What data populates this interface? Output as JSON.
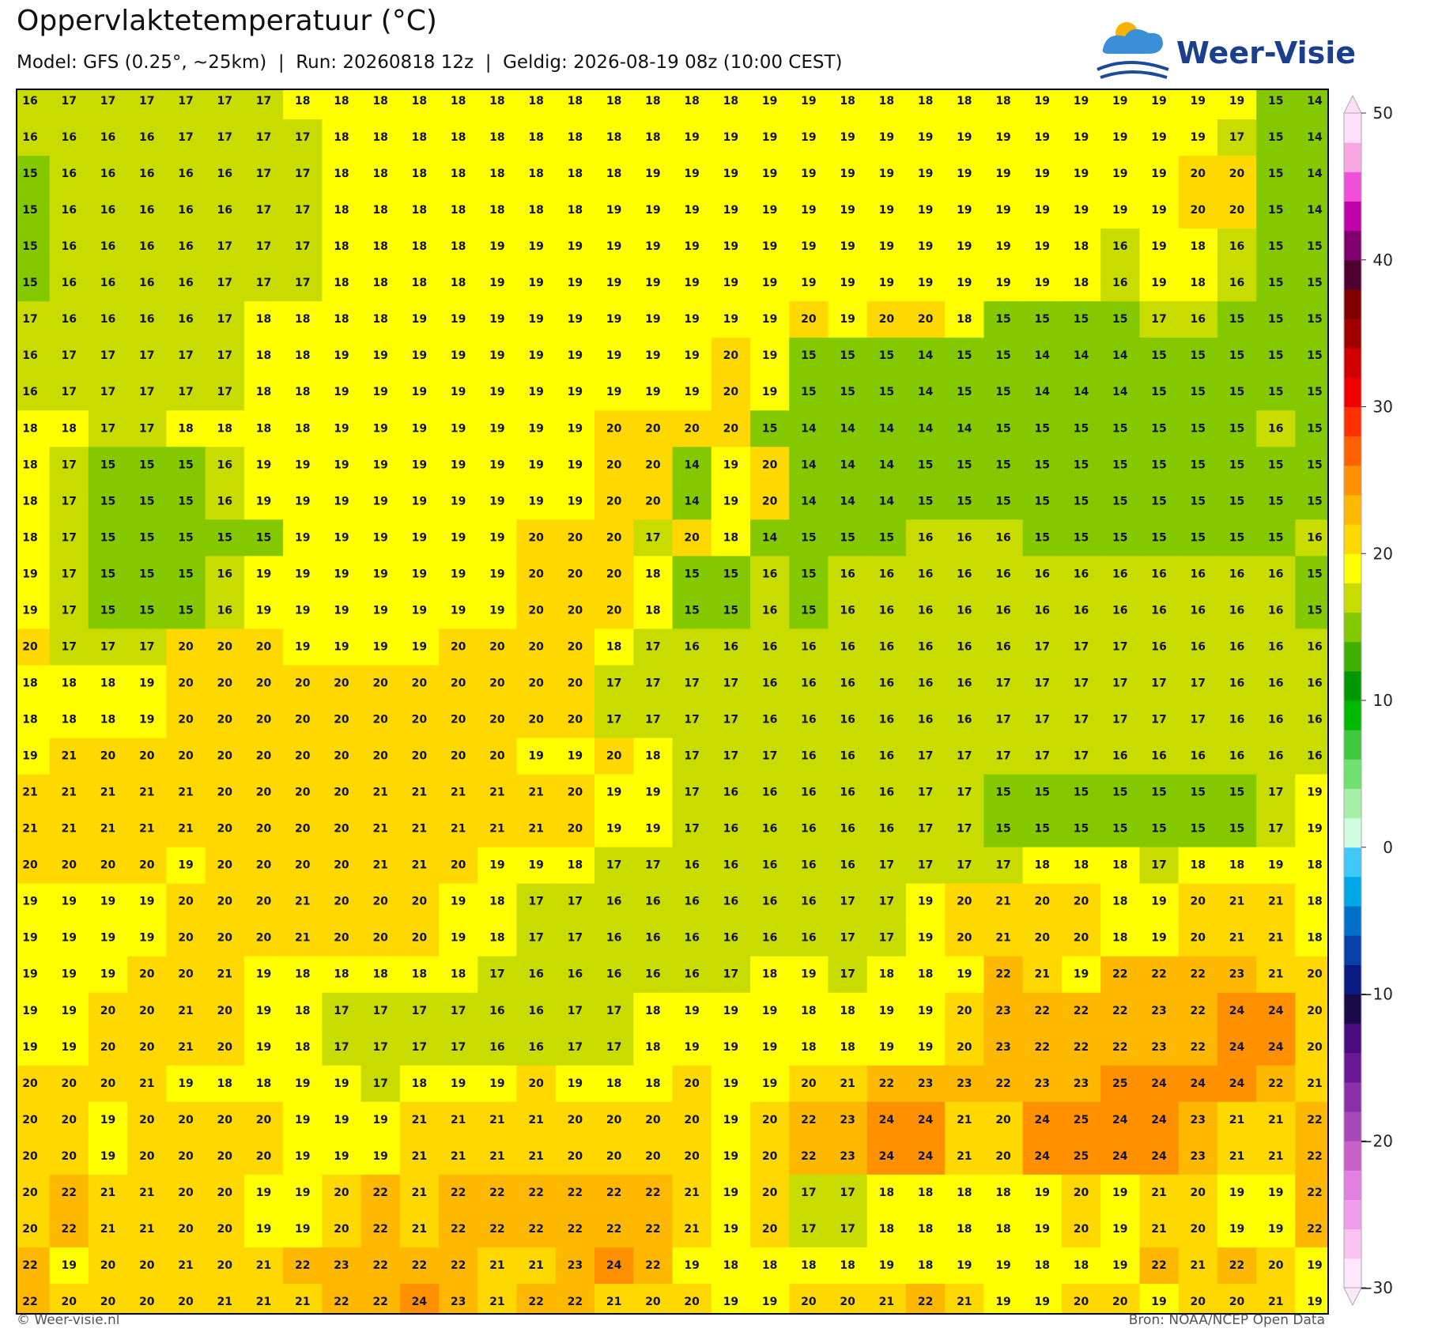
{
  "header": {
    "title": "Oppervlaktetemperatuur (°C)",
    "subtitle": "Model: GFS (0.25°, ~25km)  |  Run: 20260818 12z  |  Geldig: 2026-08-19 08z (10:00 CEST)",
    "logo": "Weer-Visie"
  },
  "footer": {
    "left": "© Weer-visie.nl",
    "right": "Bron: NOAA/NCEP Open Data"
  },
  "map": {
    "rows": [
      [
        16,
        17,
        17,
        17,
        17,
        17,
        17,
        18,
        18,
        18,
        18,
        18,
        18,
        18,
        18,
        18,
        18,
        18,
        18,
        19,
        19,
        18,
        18,
        18,
        18,
        18,
        19,
        19,
        19,
        19,
        19,
        19,
        15,
        14
      ],
      [
        16,
        16,
        16,
        16,
        17,
        17,
        17,
        17,
        18,
        18,
        18,
        18,
        18,
        18,
        18,
        18,
        18,
        19,
        19,
        19,
        19,
        19,
        19,
        19,
        19,
        19,
        19,
        19,
        19,
        19,
        19,
        17,
        15,
        14
      ],
      [
        15,
        16,
        16,
        16,
        16,
        16,
        17,
        17,
        18,
        18,
        18,
        18,
        18,
        18,
        18,
        18,
        19,
        19,
        19,
        19,
        19,
        19,
        19,
        19,
        19,
        19,
        19,
        19,
        19,
        19,
        20,
        20,
        15,
        14
      ],
      [
        15,
        16,
        16,
        16,
        16,
        16,
        17,
        17,
        18,
        18,
        18,
        18,
        18,
        18,
        18,
        19,
        19,
        19,
        19,
        19,
        19,
        19,
        19,
        19,
        19,
        19,
        19,
        19,
        19,
        19,
        20,
        20,
        15,
        14
      ],
      [
        15,
        16,
        16,
        16,
        16,
        17,
        17,
        17,
        18,
        18,
        18,
        18,
        19,
        19,
        19,
        19,
        19,
        19,
        19,
        19,
        19,
        19,
        19,
        19,
        19,
        19,
        19,
        18,
        16,
        19,
        18,
        16,
        15,
        15
      ],
      [
        15,
        16,
        16,
        16,
        16,
        17,
        17,
        17,
        18,
        18,
        18,
        18,
        19,
        19,
        19,
        19,
        19,
        19,
        19,
        19,
        19,
        19,
        19,
        19,
        19,
        19,
        19,
        18,
        16,
        19,
        18,
        16,
        15,
        15
      ],
      [
        17,
        16,
        16,
        16,
        16,
        17,
        18,
        18,
        18,
        18,
        19,
        19,
        19,
        19,
        19,
        19,
        19,
        19,
        19,
        19,
        20,
        19,
        20,
        20,
        18,
        15,
        15,
        15,
        15,
        17,
        16,
        15,
        15,
        15
      ],
      [
        16,
        17,
        17,
        17,
        17,
        17,
        18,
        18,
        19,
        19,
        19,
        19,
        19,
        19,
        19,
        19,
        19,
        19,
        20,
        19,
        15,
        15,
        15,
        14,
        15,
        15,
        14,
        14,
        14,
        15,
        15,
        15,
        15,
        15
      ],
      [
        16,
        17,
        17,
        17,
        17,
        17,
        18,
        18,
        19,
        19,
        19,
        19,
        19,
        19,
        19,
        19,
        19,
        19,
        20,
        19,
        15,
        15,
        15,
        14,
        15,
        15,
        14,
        14,
        14,
        15,
        15,
        15,
        15,
        15
      ],
      [
        18,
        18,
        17,
        17,
        18,
        18,
        18,
        18,
        19,
        19,
        19,
        19,
        19,
        19,
        19,
        20,
        20,
        20,
        20,
        15,
        14,
        14,
        14,
        14,
        14,
        15,
        15,
        15,
        15,
        15,
        15,
        15,
        16,
        15
      ],
      [
        18,
        17,
        15,
        15,
        15,
        16,
        19,
        19,
        19,
        19,
        19,
        19,
        19,
        19,
        19,
        20,
        20,
        14,
        19,
        20,
        14,
        14,
        14,
        15,
        15,
        15,
        15,
        15,
        15,
        15,
        15,
        15,
        15,
        15
      ],
      [
        18,
        17,
        15,
        15,
        15,
        16,
        19,
        19,
        19,
        19,
        19,
        19,
        19,
        19,
        19,
        20,
        20,
        14,
        19,
        20,
        14,
        14,
        14,
        15,
        15,
        15,
        15,
        15,
        15,
        15,
        15,
        15,
        15,
        15
      ],
      [
        18,
        17,
        15,
        15,
        15,
        15,
        15,
        19,
        19,
        19,
        19,
        19,
        19,
        20,
        20,
        20,
        17,
        20,
        18,
        14,
        15,
        15,
        15,
        16,
        16,
        16,
        15,
        15,
        15,
        15,
        15,
        15,
        15,
        16
      ],
      [
        19,
        17,
        15,
        15,
        15,
        16,
        19,
        19,
        19,
        19,
        19,
        19,
        19,
        20,
        20,
        20,
        18,
        15,
        15,
        16,
        15,
        16,
        16,
        16,
        16,
        16,
        16,
        16,
        16,
        16,
        16,
        16,
        16,
        15
      ],
      [
        19,
        17,
        15,
        15,
        15,
        16,
        19,
        19,
        19,
        19,
        19,
        19,
        19,
        20,
        20,
        20,
        18,
        15,
        15,
        16,
        15,
        16,
        16,
        16,
        16,
        16,
        16,
        16,
        16,
        16,
        16,
        16,
        16,
        15
      ],
      [
        20,
        17,
        17,
        17,
        20,
        20,
        20,
        19,
        19,
        19,
        19,
        20,
        20,
        20,
        20,
        18,
        17,
        16,
        16,
        16,
        16,
        16,
        16,
        16,
        16,
        16,
        17,
        17,
        17,
        16,
        16,
        16,
        16,
        16
      ],
      [
        18,
        18,
        18,
        19,
        20,
        20,
        20,
        20,
        20,
        20,
        20,
        20,
        20,
        20,
        20,
        17,
        17,
        17,
        17,
        16,
        16,
        16,
        16,
        16,
        16,
        17,
        17,
        17,
        17,
        17,
        17,
        16,
        16,
        16
      ],
      [
        18,
        18,
        18,
        19,
        20,
        20,
        20,
        20,
        20,
        20,
        20,
        20,
        20,
        20,
        20,
        17,
        17,
        17,
        17,
        16,
        16,
        16,
        16,
        16,
        16,
        17,
        17,
        17,
        17,
        17,
        17,
        16,
        16,
        16
      ],
      [
        19,
        21,
        20,
        20,
        20,
        20,
        20,
        20,
        20,
        20,
        20,
        20,
        20,
        19,
        19,
        20,
        18,
        17,
        17,
        17,
        16,
        16,
        16,
        17,
        17,
        17,
        17,
        17,
        16,
        16,
        16,
        16,
        16,
        16
      ],
      [
        21,
        21,
        21,
        21,
        21,
        20,
        20,
        20,
        20,
        21,
        21,
        21,
        21,
        21,
        20,
        19,
        19,
        17,
        16,
        16,
        16,
        16,
        16,
        17,
        17,
        15,
        15,
        15,
        15,
        15,
        15,
        15,
        17,
        19
      ],
      [
        21,
        21,
        21,
        21,
        21,
        20,
        20,
        20,
        20,
        21,
        21,
        21,
        21,
        21,
        20,
        19,
        19,
        17,
        16,
        16,
        16,
        16,
        16,
        17,
        17,
        15,
        15,
        15,
        15,
        15,
        15,
        15,
        17,
        19
      ],
      [
        20,
        20,
        20,
        20,
        19,
        20,
        20,
        20,
        20,
        21,
        21,
        20,
        19,
        19,
        18,
        17,
        17,
        16,
        16,
        16,
        16,
        16,
        17,
        17,
        17,
        17,
        18,
        18,
        18,
        17,
        18,
        18,
        19,
        18
      ],
      [
        19,
        19,
        19,
        19,
        20,
        20,
        20,
        21,
        20,
        20,
        20,
        19,
        18,
        17,
        17,
        16,
        16,
        16,
        16,
        16,
        16,
        17,
        17,
        19,
        20,
        21,
        20,
        20,
        18,
        19,
        20,
        21,
        21,
        18
      ],
      [
        19,
        19,
        19,
        19,
        20,
        20,
        20,
        21,
        20,
        20,
        20,
        19,
        18,
        17,
        17,
        16,
        16,
        16,
        16,
        16,
        16,
        17,
        17,
        19,
        20,
        21,
        20,
        20,
        18,
        19,
        20,
        21,
        21,
        18
      ],
      [
        19,
        19,
        19,
        20,
        20,
        21,
        19,
        18,
        18,
        18,
        18,
        18,
        17,
        16,
        16,
        16,
        16,
        16,
        17,
        18,
        19,
        17,
        18,
        18,
        19,
        22,
        21,
        19,
        22,
        22,
        22,
        23,
        21,
        20
      ],
      [
        19,
        19,
        20,
        20,
        21,
        20,
        19,
        18,
        17,
        17,
        17,
        17,
        16,
        16,
        17,
        17,
        18,
        19,
        19,
        19,
        18,
        18,
        19,
        19,
        20,
        23,
        22,
        22,
        22,
        23,
        22,
        24,
        24,
        20
      ],
      [
        19,
        19,
        20,
        20,
        21,
        20,
        19,
        18,
        17,
        17,
        17,
        17,
        16,
        16,
        17,
        17,
        18,
        19,
        19,
        19,
        18,
        18,
        19,
        19,
        20,
        23,
        22,
        22,
        22,
        23,
        22,
        24,
        24,
        20
      ],
      [
        20,
        20,
        20,
        21,
        19,
        18,
        18,
        19,
        19,
        17,
        18,
        19,
        19,
        20,
        19,
        18,
        18,
        20,
        19,
        19,
        20,
        21,
        22,
        23,
        23,
        22,
        23,
        23,
        25,
        24,
        24,
        24,
        22,
        21
      ],
      [
        20,
        20,
        19,
        20,
        20,
        20,
        20,
        19,
        19,
        19,
        21,
        21,
        21,
        21,
        20,
        20,
        20,
        20,
        19,
        20,
        22,
        23,
        24,
        24,
        21,
        20,
        24,
        25,
        24,
        24,
        23,
        21,
        21,
        22
      ],
      [
        20,
        20,
        19,
        20,
        20,
        20,
        20,
        19,
        19,
        19,
        21,
        21,
        21,
        21,
        20,
        20,
        20,
        20,
        19,
        20,
        22,
        23,
        24,
        24,
        21,
        20,
        24,
        25,
        24,
        24,
        23,
        21,
        21,
        22
      ],
      [
        20,
        22,
        21,
        21,
        20,
        20,
        19,
        19,
        20,
        22,
        21,
        22,
        22,
        22,
        22,
        22,
        22,
        21,
        19,
        20,
        17,
        17,
        18,
        18,
        18,
        18,
        19,
        20,
        19,
        21,
        20,
        19,
        19,
        22
      ],
      [
        20,
        22,
        21,
        21,
        20,
        20,
        19,
        19,
        20,
        22,
        21,
        22,
        22,
        22,
        22,
        22,
        22,
        21,
        19,
        20,
        17,
        17,
        18,
        18,
        18,
        18,
        19,
        20,
        19,
        21,
        20,
        19,
        19,
        22
      ],
      [
        22,
        19,
        20,
        20,
        21,
        20,
        21,
        22,
        23,
        22,
        22,
        22,
        21,
        21,
        23,
        24,
        22,
        19,
        18,
        18,
        18,
        18,
        19,
        18,
        19,
        19,
        18,
        18,
        19,
        22,
        21,
        22,
        20,
        19
      ],
      [
        22,
        20,
        20,
        20,
        20,
        21,
        21,
        21,
        22,
        22,
        24,
        23,
        21,
        22,
        22,
        21,
        20,
        20,
        19,
        19,
        20,
        20,
        21,
        22,
        21,
        19,
        19,
        20,
        20,
        19,
        20,
        20,
        21,
        19
      ]
    ]
  },
  "colorbar": {
    "lim": [
      -30,
      50
    ],
    "ticks": [
      50,
      40,
      30,
      20,
      10,
      0,
      {
        "value": -10,
        "label": "−10"
      },
      {
        "value": -20,
        "label": "−20"
      },
      {
        "value": -30,
        "label": "−30"
      }
    ],
    "colors": [
      "#fde8fb",
      "#f9c4f2",
      "#f0a0ea",
      "#e080e0",
      "#c860c8",
      "#a848b8",
      "#8a30a8",
      "#6a1898",
      "#4a0a80",
      "#1a0a48",
      "#0a1a80",
      "#0840a8",
      "#0070c8",
      "#00a8e8",
      "#40c8f8",
      "#d0fce0",
      "#a8f0a8",
      "#70e070",
      "#40c840",
      "#00b800",
      "#009800",
      "#40b000",
      "#84c800",
      "#c8dc00",
      "#ffff00",
      "#ffd800",
      "#ffb800",
      "#ff9000",
      "#ff6000",
      "#ff3000",
      "#f00000",
      "#d00000",
      "#a00000",
      "#800000",
      "#500030",
      "#800070",
      "#c000a8",
      "#f050d8",
      "#f8a8e0",
      "#fde0f8"
    ]
  }
}
